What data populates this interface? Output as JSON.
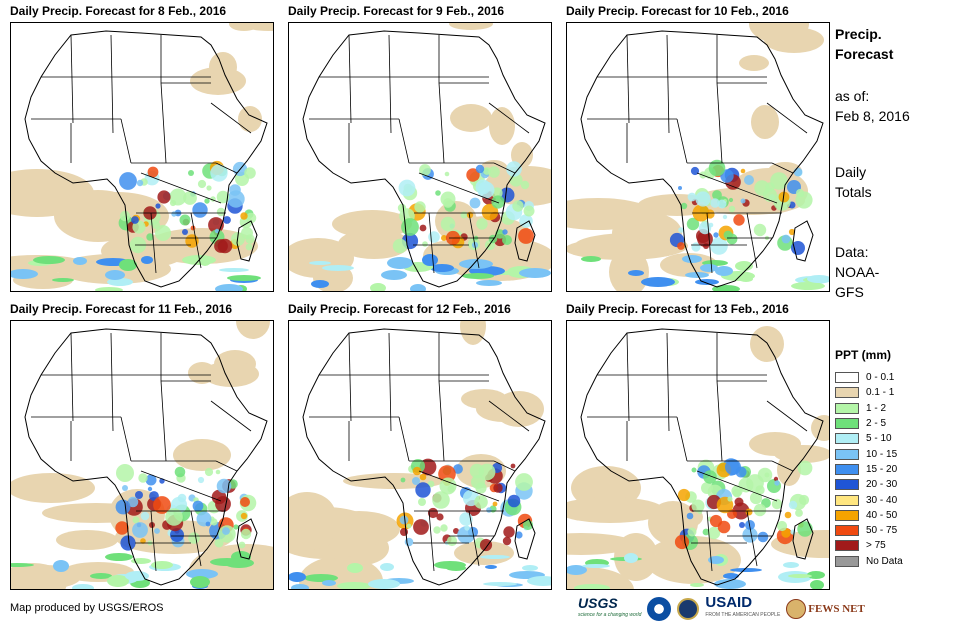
{
  "panels": [
    {
      "title": "Daily Precip. Forecast for 8 Feb., 2016"
    },
    {
      "title": "Daily Precip. Forecast for 9 Feb., 2016"
    },
    {
      "title": "Daily Precip. Forecast for 10 Feb., 2016"
    },
    {
      "title": "Daily Precip. Forecast for 11 Feb., 2016"
    },
    {
      "title": "Daily Precip. Forecast for 12 Feb., 2016"
    },
    {
      "title": "Daily Precip. Forecast for 13 Feb., 2016"
    }
  ],
  "sidebar": {
    "title_line1": "Precip.",
    "title_line2": "Forecast",
    "asof_label": "as of:",
    "asof_date": "Feb 8, 2016",
    "totals_line1": "Daily",
    "totals_line2": "Totals",
    "data_line1": "Data:",
    "data_line2": "NOAA-",
    "data_line3": "GFS"
  },
  "legend": {
    "title": "PPT (mm)",
    "items": [
      {
        "label": "0 - 0.1",
        "color": "#ffffff"
      },
      {
        "label": "0.1 - 1",
        "color": "#e8d5b0"
      },
      {
        "label": "1 - 2",
        "color": "#b4f5a8"
      },
      {
        "label": "2 - 5",
        "color": "#6fe07a"
      },
      {
        "label": "5 - 10",
        "color": "#b0eef5"
      },
      {
        "label": "10 - 15",
        "color": "#7ac3f5"
      },
      {
        "label": "15 - 20",
        "color": "#3f8fef"
      },
      {
        "label": "20 - 30",
        "color": "#1f55d6"
      },
      {
        "label": "30 - 40",
        "color": "#ffe680"
      },
      {
        "label": "40 - 50",
        "color": "#f5a300"
      },
      {
        "label": "50 - 75",
        "color": "#f04a10"
      },
      {
        "label": "> 75",
        "color": "#a11a1a"
      },
      {
        "label": "No Data",
        "color": "#999999"
      }
    ]
  },
  "footer": {
    "credit": "Map produced by USGS/EROS",
    "logos": {
      "usgs": "USGS",
      "usgs_tagline": "science for a changing world",
      "usaid": "USAID",
      "usaid_tagline": "FROM THE AMERICAN PEOPLE",
      "fews": "FEWS NET"
    }
  }
}
